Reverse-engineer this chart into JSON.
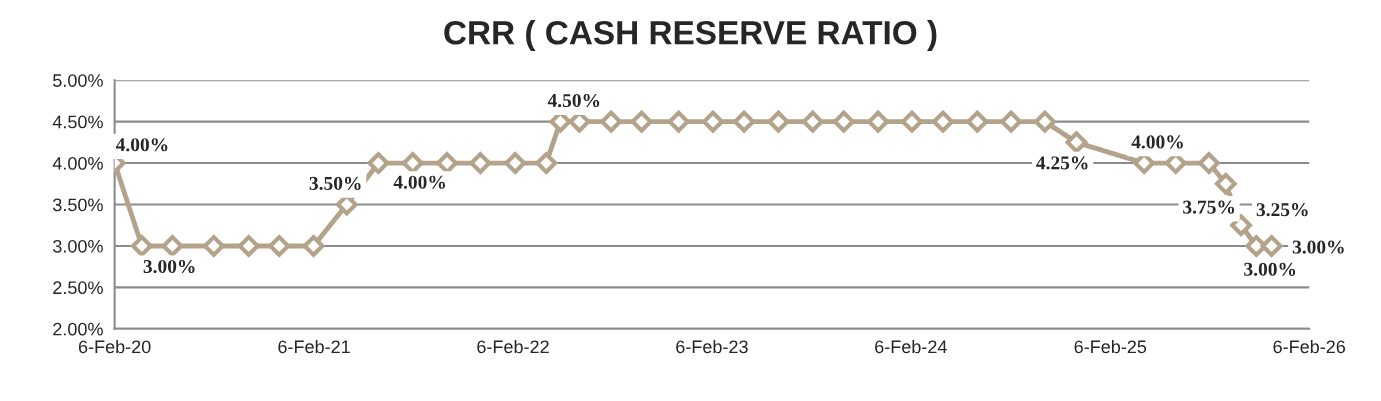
{
  "chart_data": {
    "type": "line",
    "title": "CRR ( CASH RESERVE RATIO )",
    "x": [
      "2020-02-06",
      "2020-03-27",
      "2020-05-22",
      "2020-08-06",
      "2020-10-09",
      "2020-12-04",
      "2021-02-05",
      "2021-04-07",
      "2021-06-04",
      "2021-08-06",
      "2021-10-08",
      "2021-12-08",
      "2022-02-10",
      "2022-04-08",
      "2022-05-04",
      "2022-06-08",
      "2022-08-05",
      "2022-09-30",
      "2022-12-07",
      "2023-02-08",
      "2023-04-06",
      "2023-06-08",
      "2023-08-10",
      "2023-10-06",
      "2023-12-08",
      "2024-02-08",
      "2024-04-05",
      "2024-06-07",
      "2024-08-08",
      "2024-10-09",
      "2024-12-06",
      "2025-04-09",
      "2025-06-06",
      "2025-08-06",
      "2025-09-06",
      "2025-10-04",
      "2025-11-01",
      "2025-11-29"
    ],
    "series": [
      {
        "color": "#b3a38b",
        "values": [
          4.0,
          3.0,
          3.0,
          3.0,
          3.0,
          3.0,
          3.0,
          3.5,
          4.0,
          4.0,
          4.0,
          4.0,
          4.0,
          4.0,
          4.5,
          4.5,
          4.5,
          4.5,
          4.5,
          4.5,
          4.5,
          4.5,
          4.5,
          4.5,
          4.5,
          4.5,
          4.5,
          4.5,
          4.5,
          4.5,
          4.25,
          4.0,
          4.0,
          4.0,
          3.75,
          3.25,
          3.0,
          3.0
        ],
        "value_labels": [
          "4.00%",
          "3.00%",
          null,
          null,
          null,
          null,
          null,
          "3.50%",
          "4.00%",
          null,
          null,
          null,
          null,
          null,
          "4.50%",
          null,
          null,
          null,
          null,
          null,
          null,
          null,
          null,
          null,
          null,
          null,
          null,
          null,
          null,
          null,
          "4.25%",
          "4.00%",
          null,
          null,
          "3.75%",
          "3.25%",
          "3.00%",
          "3.00%"
        ]
      }
    ],
    "xlim": [
      "2020-02-06",
      "2026-02-06"
    ],
    "xticks": [
      {
        "value": "2020-02-06",
        "label": "6-Feb-20"
      },
      {
        "value": "2021-02-06",
        "label": "6-Feb-21"
      },
      {
        "value": "2022-02-06",
        "label": "6-Feb-22"
      },
      {
        "value": "2023-02-06",
        "label": "6-Feb-23"
      },
      {
        "value": "2024-02-06",
        "label": "6-Feb-24"
      },
      {
        "value": "2025-02-06",
        "label": "6-Feb-25"
      },
      {
        "value": "2026-02-06",
        "label": "6-Feb-26"
      }
    ],
    "ylim": [
      2.0,
      5.0
    ],
    "yticks": [
      {
        "value": 2.0,
        "label": "2.00%"
      },
      {
        "value": 2.5,
        "label": "2.50%"
      },
      {
        "value": 3.0,
        "label": "3.00%"
      },
      {
        "value": 3.5,
        "label": "3.50%"
      },
      {
        "value": 4.0,
        "label": "4.00%"
      },
      {
        "value": 4.5,
        "label": "4.50%"
      },
      {
        "value": 5.0,
        "label": "5.00%"
      }
    ],
    "grid": "y",
    "legend": false,
    "marker": "diamond",
    "line_style": "solid"
  }
}
